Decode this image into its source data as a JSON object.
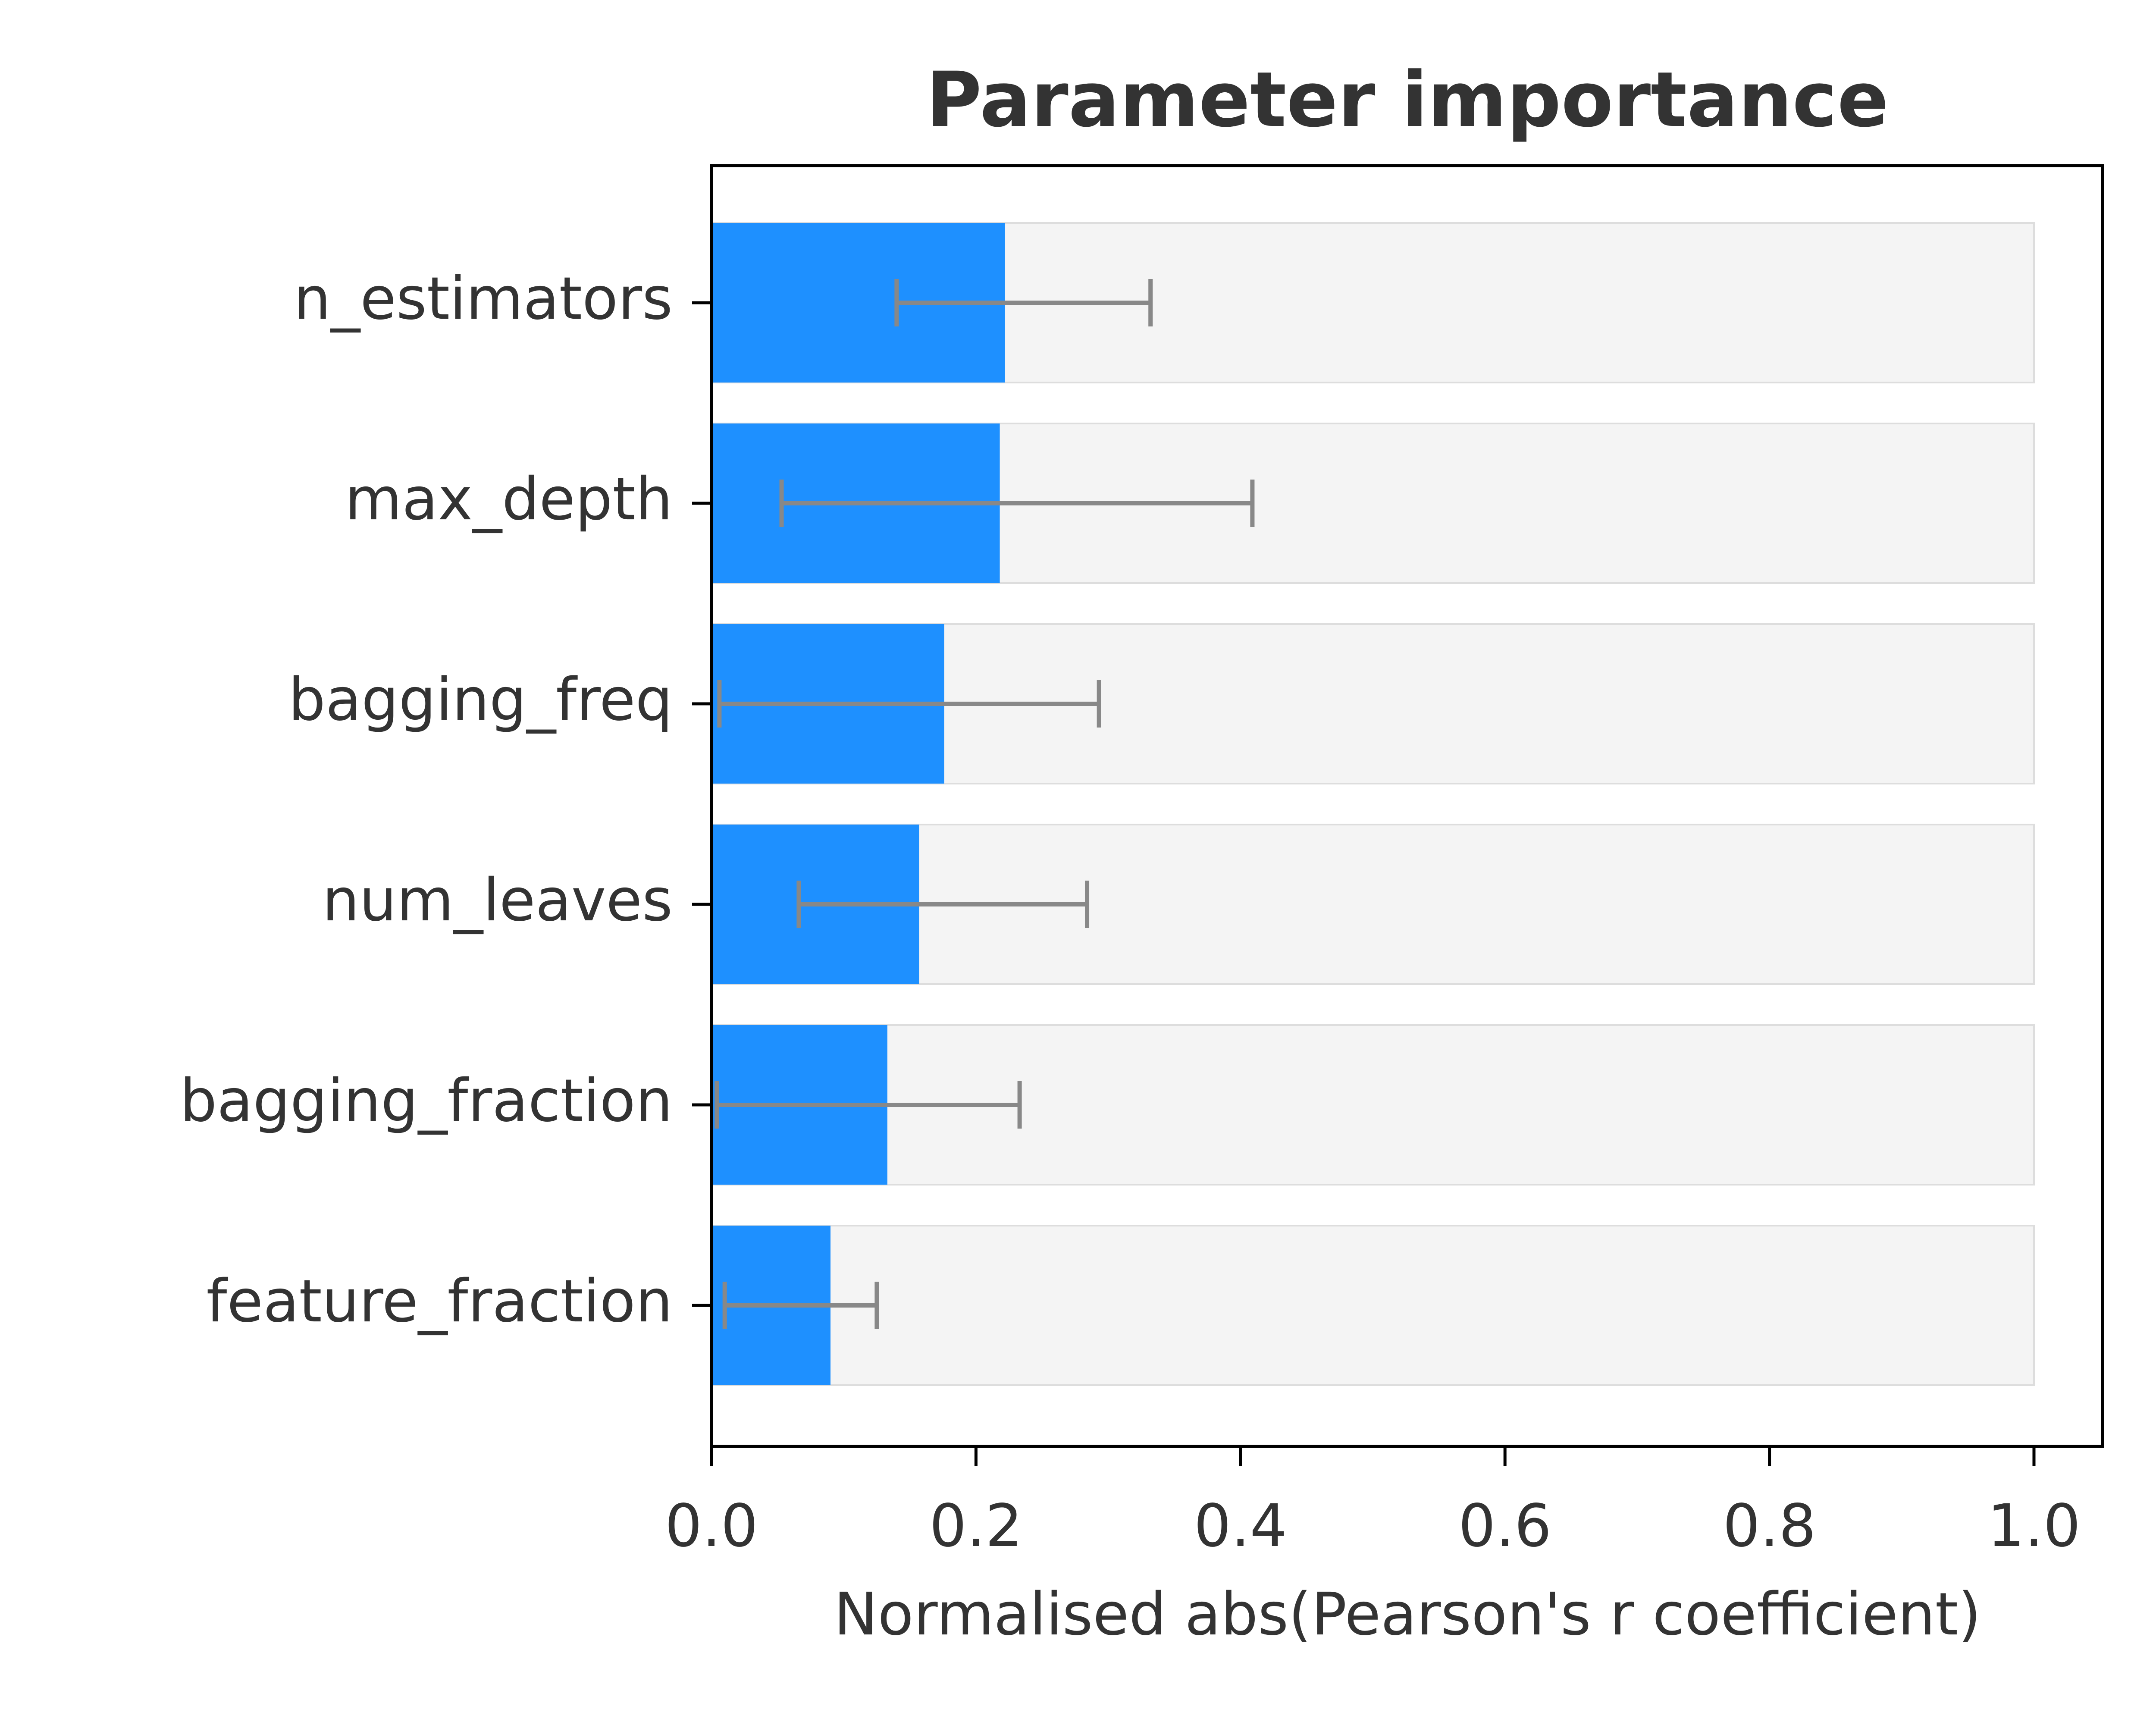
{
  "chart_data": {
    "type": "bar",
    "orientation": "horizontal",
    "title": "Parameter importance",
    "xlabel": "Normalised abs(Pearson's r coefficient)",
    "ylabel": "",
    "xlim": [
      0,
      1.05
    ],
    "x_ticks": [
      "0.0",
      "0.2",
      "0.4",
      "0.6",
      "0.8",
      "1.0"
    ],
    "categories": [
      "n_estimators",
      "max_depth",
      "bagging_freq",
      "num_leaves",
      "bagging_fraction",
      "feature_fraction"
    ],
    "values": [
      0.222,
      0.218,
      0.176,
      0.157,
      0.133,
      0.09
    ],
    "error_low": [
      0.14,
      0.053,
      0.006,
      0.066,
      0.004,
      0.01
    ],
    "error_high": [
      0.332,
      0.409,
      0.293,
      0.284,
      0.233,
      0.125
    ],
    "background_max": 1.0,
    "grid": false,
    "colors": {
      "bar": "#1e90ff",
      "background_bar": "#f4f4f4",
      "background_bar_edge": "#dddddd",
      "error_bar": "#888888",
      "text": "#333333",
      "axis": "#000000"
    }
  }
}
